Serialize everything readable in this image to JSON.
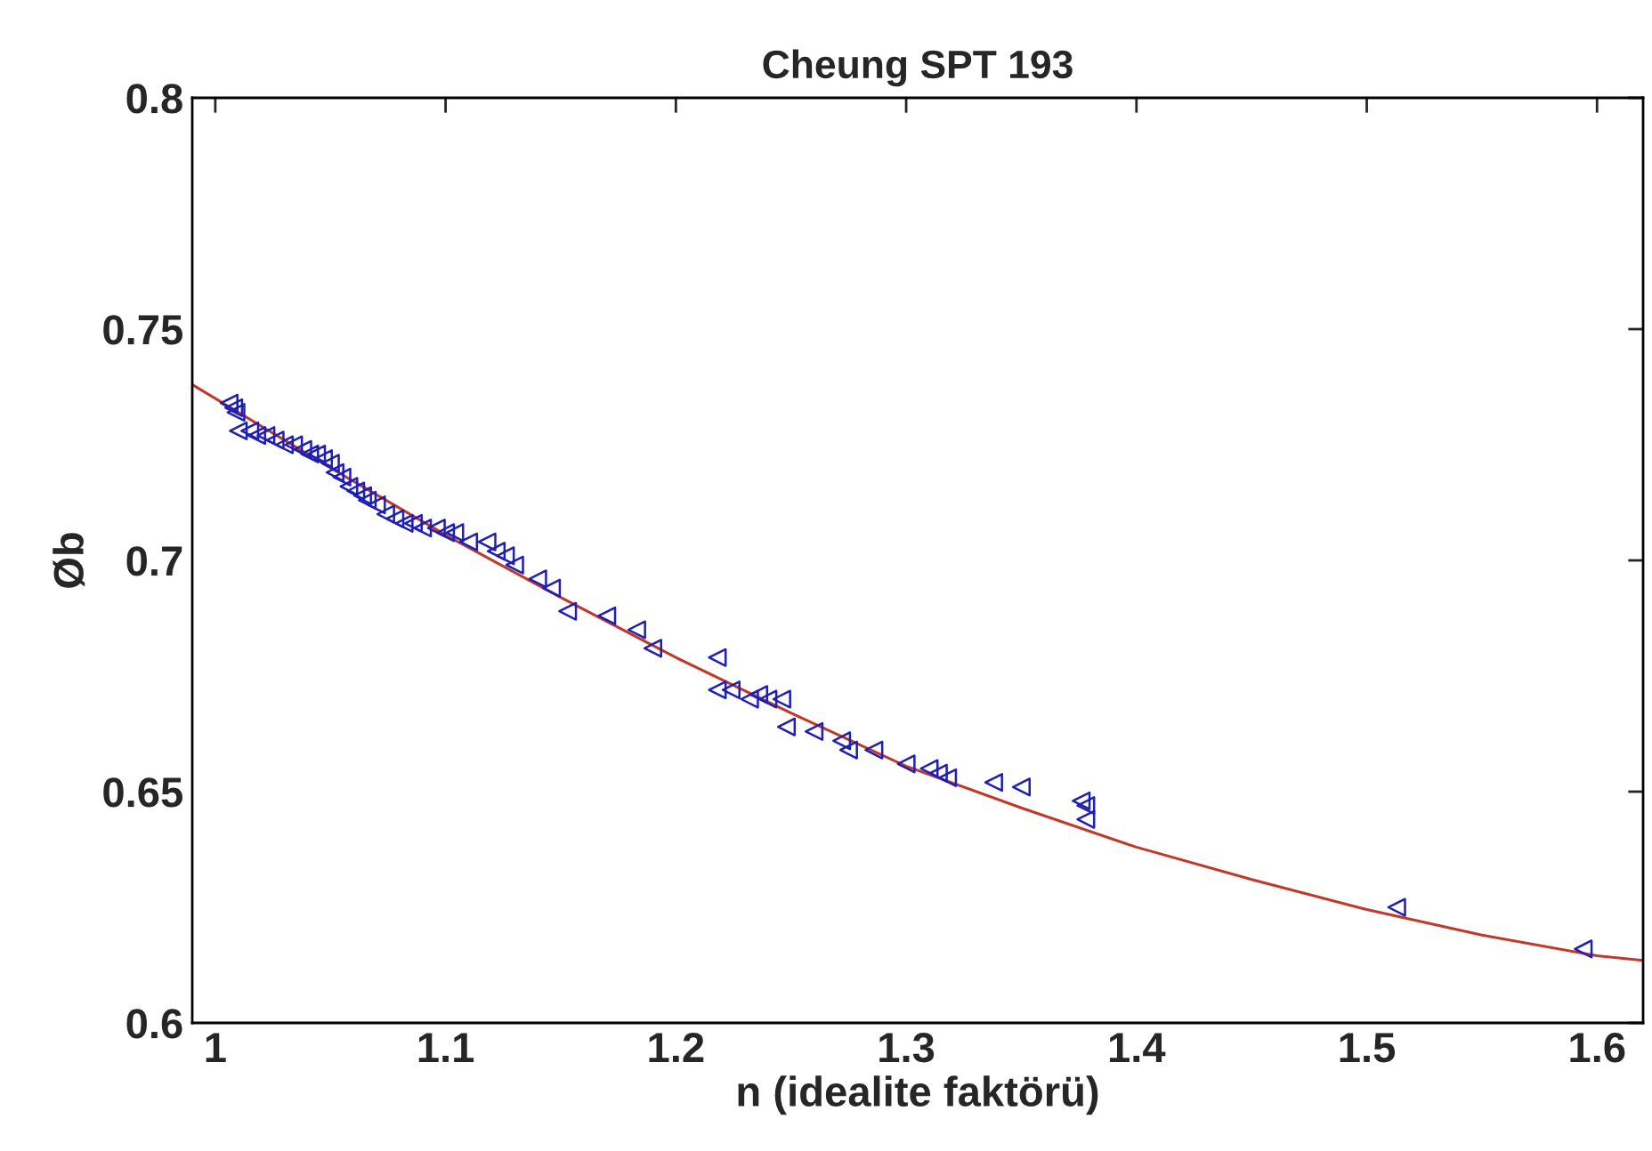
{
  "chart_data": {
    "type": "scatter",
    "title": "Cheung SPT 193",
    "xlabel": "n (idealite faktörü)",
    "ylabel": "Øb",
    "xlim": [
      0.99,
      1.62
    ],
    "ylim": [
      0.6,
      0.8
    ],
    "xticks": [
      1,
      1.1,
      1.2,
      1.3,
      1.4,
      1.5,
      1.6
    ],
    "yticks": [
      0.6,
      0.65,
      0.7,
      0.75,
      0.8
    ],
    "grid": false,
    "legend": false,
    "series": [
      {
        "color": "#1f1fb4",
        "marker": "triangle",
        "x": [
          1.006,
          1.008,
          1.009,
          1.01,
          1.015,
          1.018,
          1.022,
          1.026,
          1.03,
          1.034,
          1.038,
          1.041,
          1.044,
          1.047,
          1.05,
          1.052,
          1.055,
          1.058,
          1.061,
          1.064,
          1.066,
          1.07,
          1.074,
          1.078,
          1.082,
          1.086,
          1.09,
          1.096,
          1.1,
          1.104,
          1.11,
          1.118,
          1.122,
          1.126,
          1.13,
          1.14,
          1.146,
          1.153,
          1.17,
          1.183,
          1.19,
          1.218,
          1.218,
          1.224,
          1.232,
          1.236,
          1.24,
          1.246,
          1.248,
          1.26,
          1.272,
          1.275,
          1.286,
          1.3,
          1.31,
          1.314,
          1.318,
          1.338,
          1.35,
          1.376,
          1.378,
          1.378,
          1.513,
          1.594
        ],
        "values": [
          0.734,
          0.733,
          0.732,
          0.728,
          0.728,
          0.727,
          0.727,
          0.726,
          0.725,
          0.725,
          0.724,
          0.723,
          0.723,
          0.722,
          0.721,
          0.719,
          0.718,
          0.716,
          0.715,
          0.714,
          0.713,
          0.712,
          0.71,
          0.709,
          0.708,
          0.708,
          0.707,
          0.707,
          0.706,
          0.706,
          0.704,
          0.704,
          0.702,
          0.701,
          0.699,
          0.696,
          0.694,
          0.689,
          0.688,
          0.685,
          0.681,
          0.679,
          0.672,
          0.672,
          0.67,
          0.671,
          0.67,
          0.67,
          0.664,
          0.663,
          0.661,
          0.659,
          0.659,
          0.656,
          0.655,
          0.654,
          0.653,
          0.652,
          0.651,
          0.648,
          0.647,
          0.644,
          0.625,
          0.616
        ]
      },
      {
        "type": "line",
        "color": "#c0392b",
        "x": [
          0.99,
          1.05,
          1.1,
          1.15,
          1.2,
          1.25,
          1.3,
          1.35,
          1.4,
          1.45,
          1.5,
          1.55,
          1.6,
          1.62
        ],
        "values": [
          0.738,
          0.72,
          0.7055,
          0.692,
          0.679,
          0.667,
          0.6555,
          0.6465,
          0.638,
          0.631,
          0.6245,
          0.619,
          0.6145,
          0.6135
        ]
      }
    ]
  }
}
